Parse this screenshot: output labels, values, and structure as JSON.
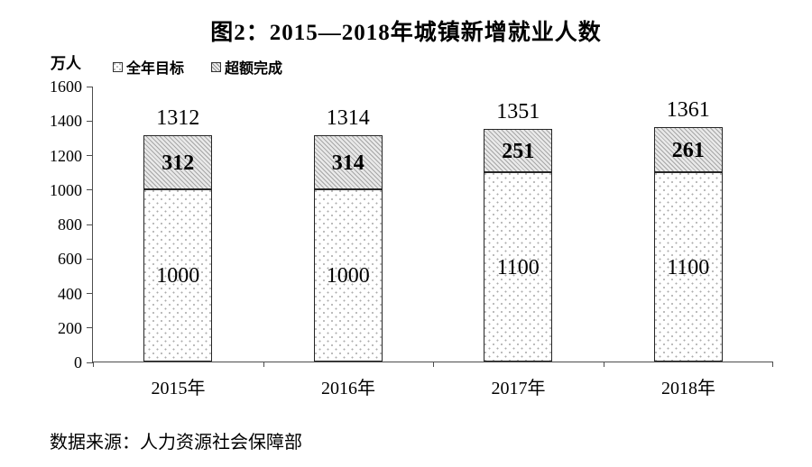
{
  "title": "图2：2015—2018年城镇新增就业人数",
  "unit_label": "万人",
  "legend": {
    "target_label": "全年目标",
    "excess_label": "超额完成"
  },
  "source": "数据来源：人力资源社会保障部",
  "colors": {
    "axis": "#4d4d4d",
    "bar_border": "#262626",
    "hatch_line": "#a6a6a6",
    "hatch_bg": "#e9e9e9",
    "dot_color": "#ababab",
    "text": "#000000",
    "background": "#ffffff"
  },
  "chart_data": {
    "type": "bar",
    "stacked": true,
    "title": "图2：2015—2018年城镇新增就业人数",
    "ylabel": "万人",
    "xlabel": "",
    "categories": [
      "2015年",
      "2016年",
      "2017年",
      "2018年"
    ],
    "series": [
      {
        "name": "全年目标",
        "pattern": "dotted",
        "values": [
          1000,
          1000,
          1100,
          1100
        ]
      },
      {
        "name": "超额完成",
        "pattern": "hatched",
        "values": [
          312,
          314,
          251,
          261
        ]
      }
    ],
    "totals": [
      1312,
      1314,
      1351,
      1361
    ],
    "ylim": [
      0,
      1600
    ],
    "yticks": [
      0,
      200,
      400,
      600,
      800,
      1000,
      1200,
      1400,
      1600
    ],
    "grid": false,
    "legend_position": "top-left"
  }
}
